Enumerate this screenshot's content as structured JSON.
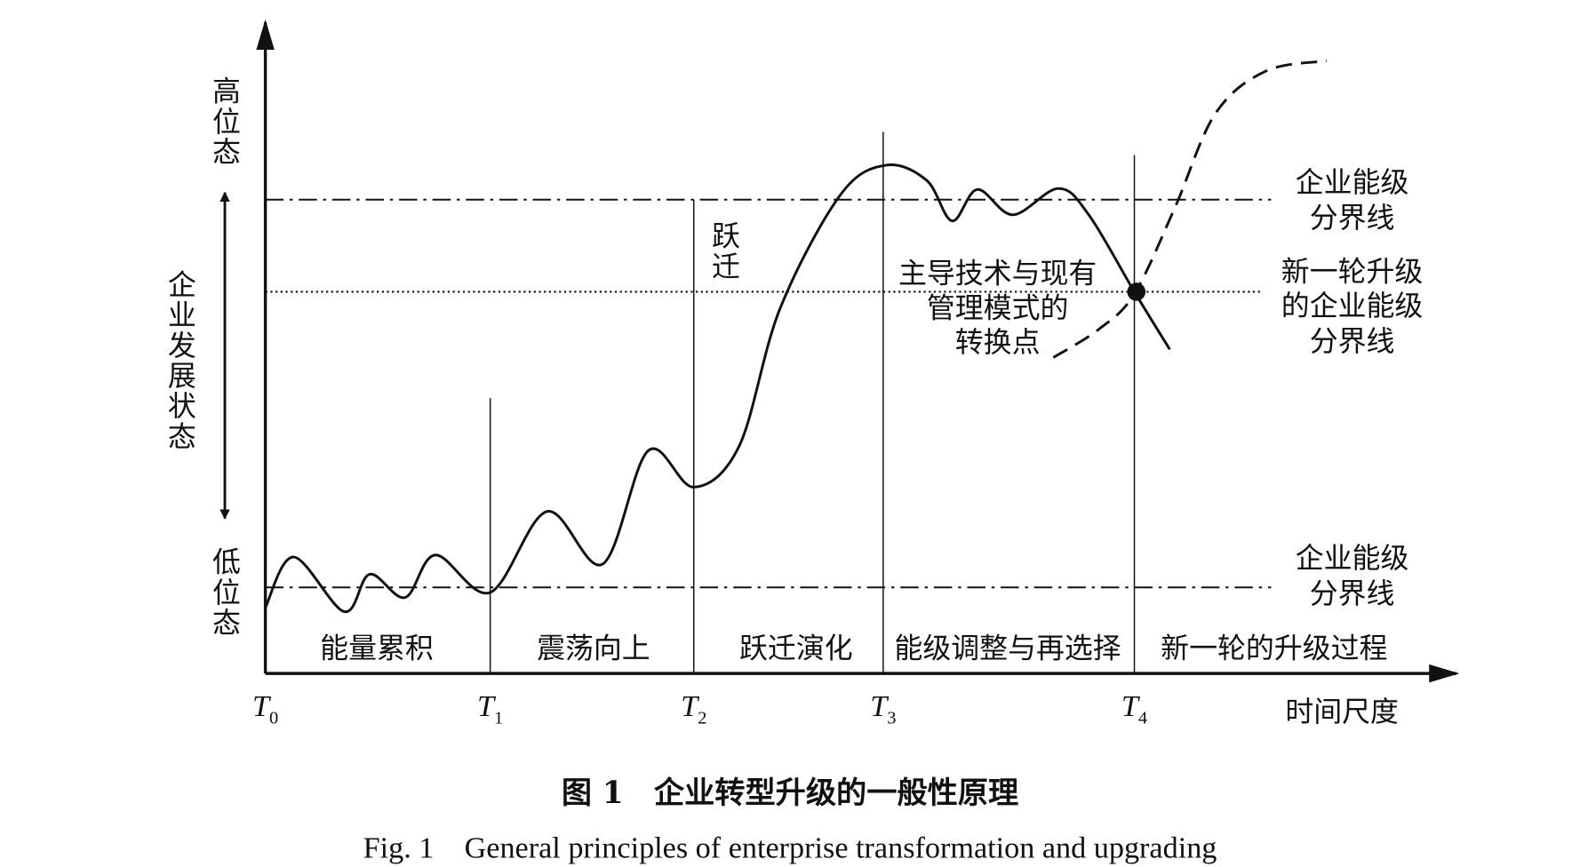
{
  "axis": {
    "y_top": "高位态",
    "y_middle": "企业发展状态",
    "y_bottom": "低位态",
    "x_label": "时间尺度"
  },
  "time_points": [
    {
      "main": "T",
      "sub": "0"
    },
    {
      "main": "T",
      "sub": "1"
    },
    {
      "main": "T",
      "sub": "2"
    },
    {
      "main": "T",
      "sub": "3"
    },
    {
      "main": "T",
      "sub": "4"
    }
  ],
  "phases": [
    "能量累积",
    "震荡向上",
    "跃迁演化",
    "能级调整与再选择",
    "新一轮的升级过程"
  ],
  "annotations": {
    "leap": "跃迁",
    "switch_point": [
      "主导技术与现有",
      "管理模式的",
      "转换点"
    ]
  },
  "boundary_labels": {
    "upper": [
      "企业能级",
      "分界线"
    ],
    "new": [
      "新一轮升级",
      "的企业能级",
      "分界线"
    ],
    "lower": [
      "企业能级",
      "分界线"
    ]
  },
  "caption": {
    "cn": "图 1　企业转型升级的一般性原理",
    "en": "Fig. 1　General principles of enterprise transformation and upgrading"
  }
}
